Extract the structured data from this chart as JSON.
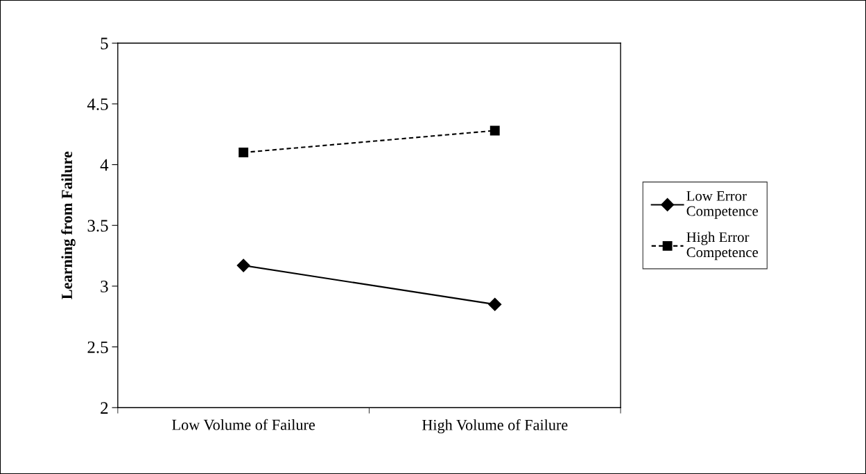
{
  "chart_data": {
    "type": "line",
    "ylabel": "Learning from Failure",
    "categories": [
      "Low Volume of Failure",
      "High Volume of Failure"
    ],
    "series": [
      {
        "name": "Low Error\nCompetence",
        "color": "#000000",
        "values": [
          3.17,
          2.85
        ],
        "marker": "diamond",
        "line_style": "solid"
      },
      {
        "name": "High Error\nCompetence",
        "color": "#000000",
        "values": [
          4.1,
          4.28
        ],
        "marker": "square",
        "line_style": "dashed"
      }
    ],
    "ylim": [
      2,
      5
    ],
    "yticks": [
      2,
      2.5,
      3,
      3.5,
      4,
      4.5,
      5
    ],
    "grid": false,
    "legend": "right"
  }
}
